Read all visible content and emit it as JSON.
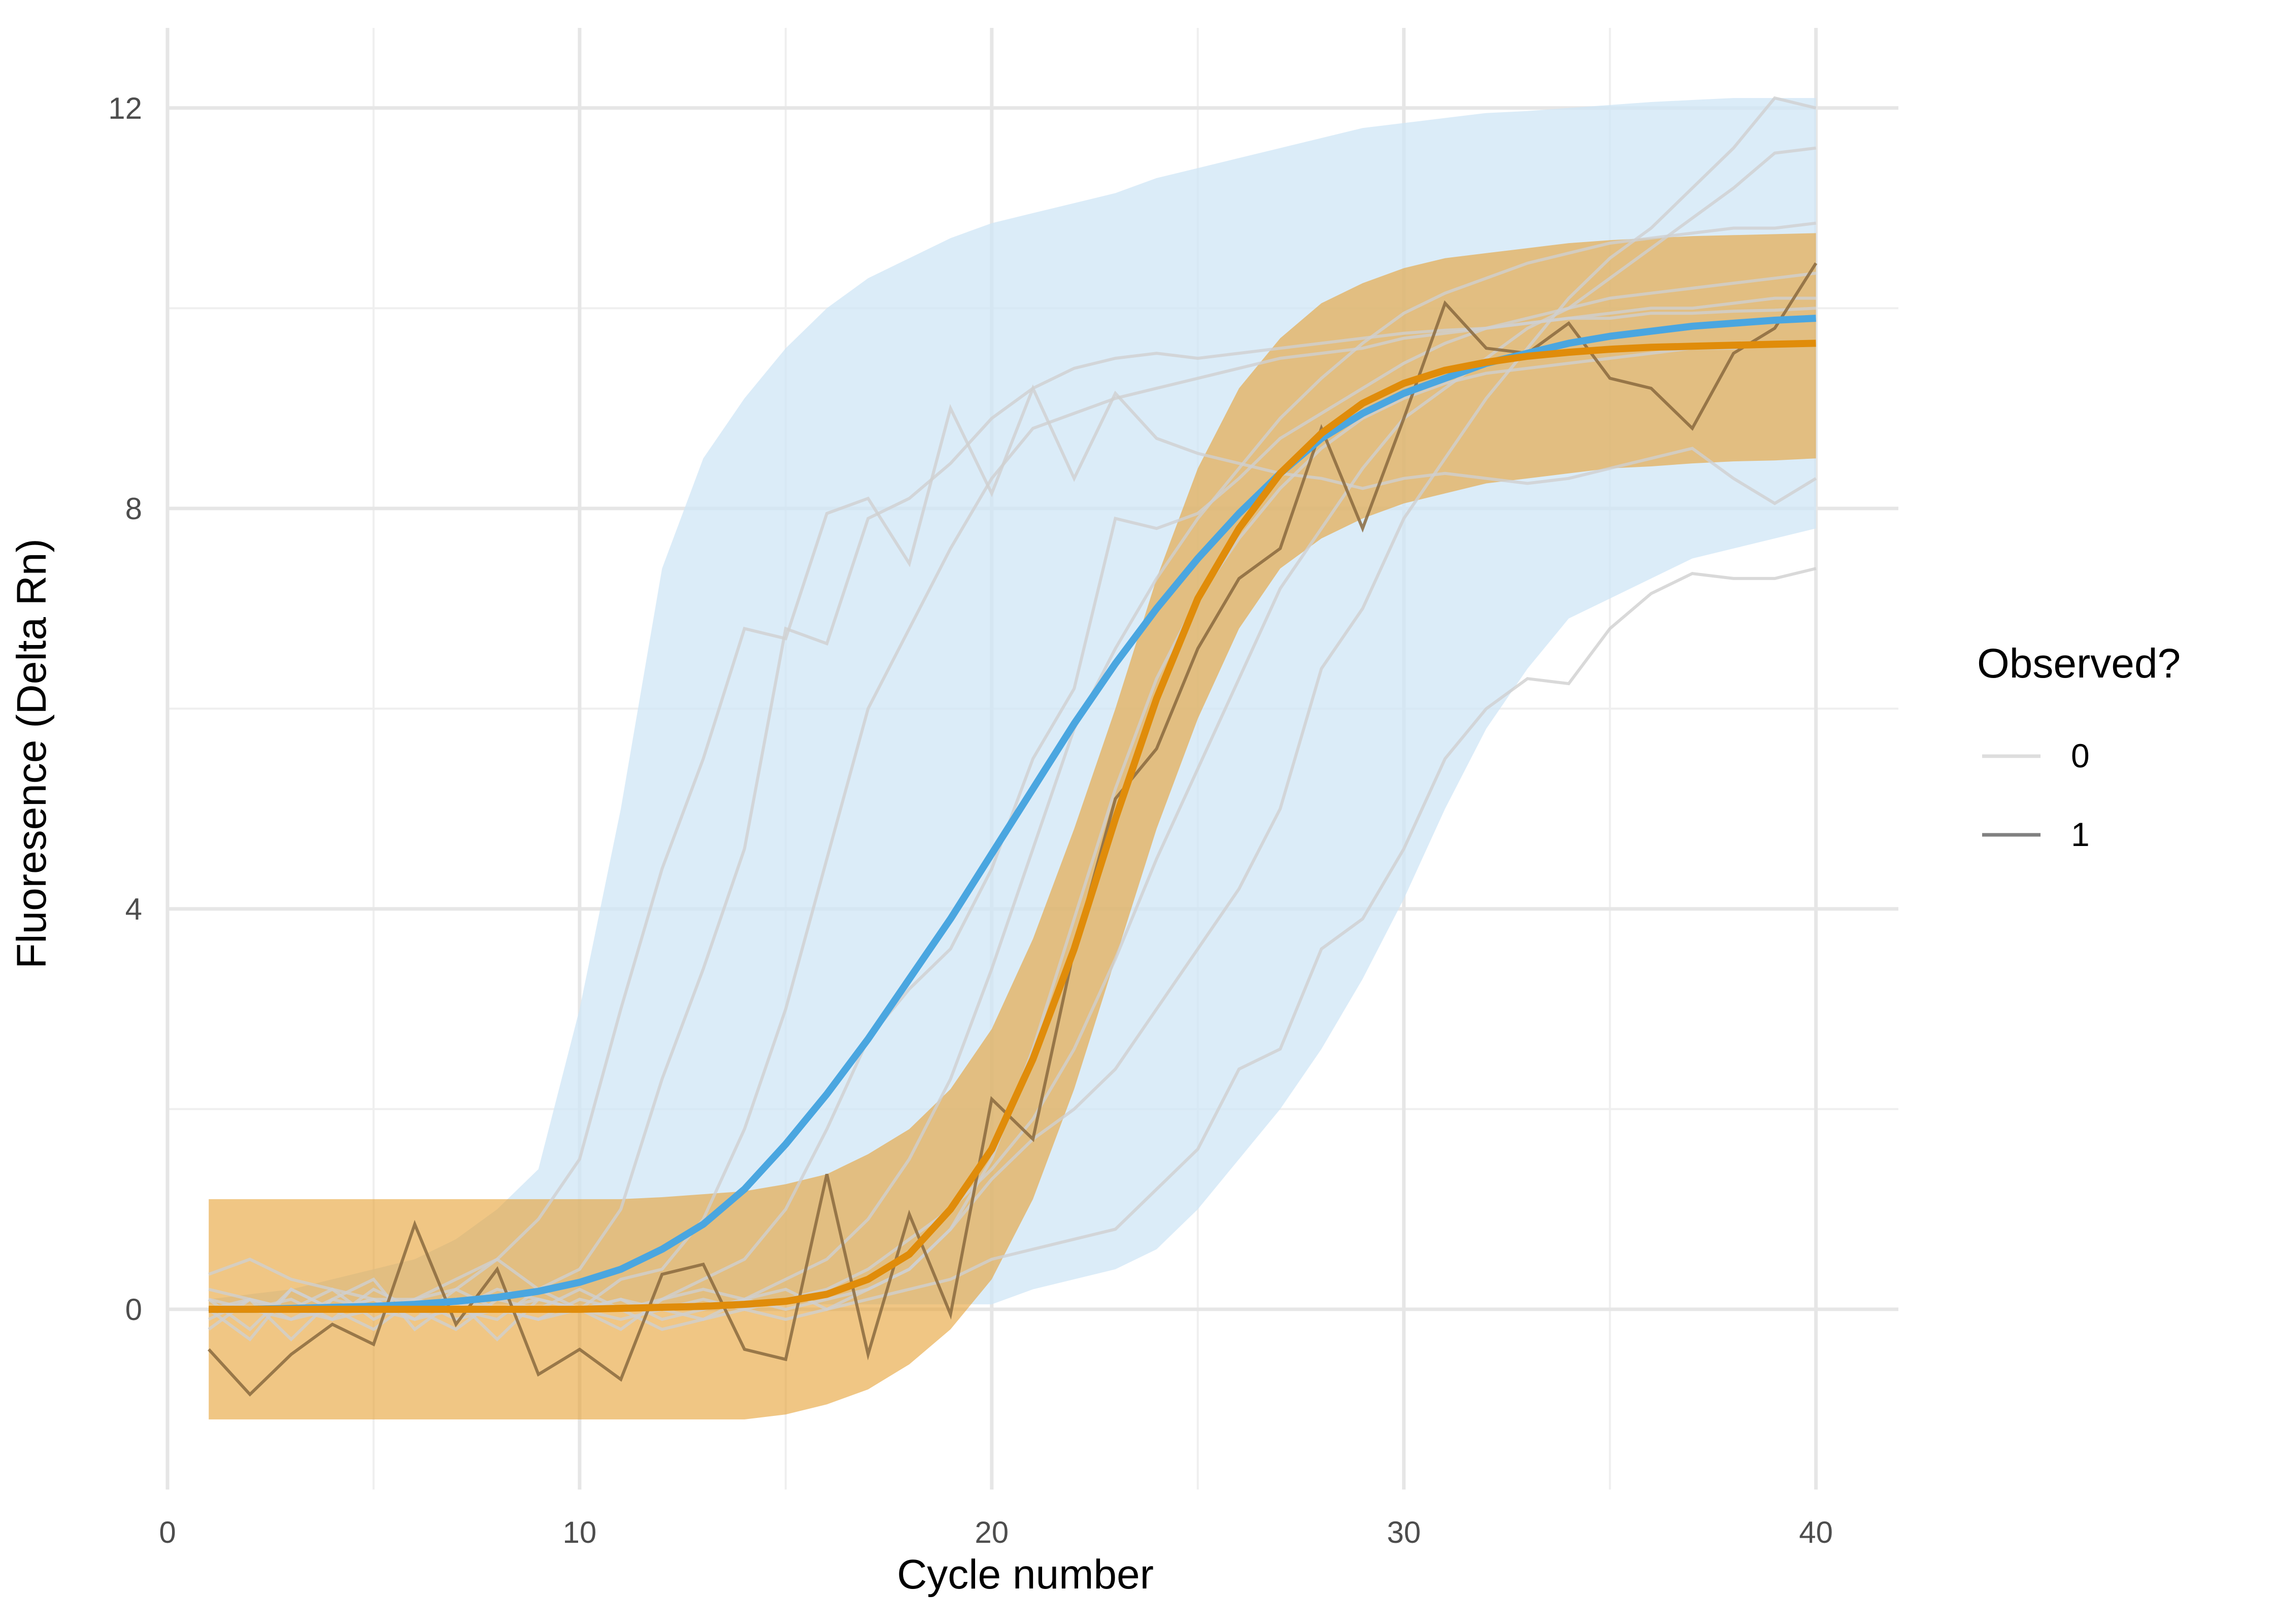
{
  "chart_data": {
    "type": "line",
    "xlabel": "Cycle number",
    "ylabel": "Fluoresence (Delta Rn)",
    "xlim": [
      0,
      42
    ],
    "ylim": [
      -1.8,
      12.8
    ],
    "x_ticks": [
      0,
      10,
      20,
      30,
      40
    ],
    "y_ticks": [
      0,
      4,
      8,
      12
    ],
    "grid": true,
    "legend": {
      "title": "Observed?",
      "placement": "right",
      "entries": [
        {
          "label": "0",
          "color": "#dddddd"
        },
        {
          "label": "1",
          "color": "#808080"
        }
      ]
    },
    "colors": {
      "blue_band": "#cfe5f6",
      "blue_line": "#4aa6e0",
      "orange_band": "#e6a032",
      "orange_line": "#e08c0a",
      "observed_0": "#cfcfcf",
      "observed_1": "#8a6a3e"
    },
    "x": [
      1,
      2,
      3,
      4,
      5,
      6,
      7,
      8,
      9,
      10,
      11,
      12,
      13,
      14,
      15,
      16,
      17,
      18,
      19,
      20,
      21,
      22,
      23,
      24,
      25,
      26,
      27,
      28,
      29,
      30,
      31,
      32,
      33,
      34,
      35,
      36,
      37,
      38,
      39,
      40
    ],
    "series": [
      {
        "role": "band-blue",
        "lower": [
          0.05,
          0.05,
          0.05,
          0.05,
          0.05,
          0.05,
          0.05,
          0.05,
          0.05,
          0.05,
          0.05,
          0.05,
          0.05,
          0.05,
          0.05,
          0.05,
          0.05,
          0.05,
          0.05,
          0.05,
          0.2,
          0.3,
          0.4,
          0.6,
          1.0,
          1.5,
          2.0,
          2.6,
          3.3,
          4.1,
          5.0,
          5.8,
          6.4,
          6.9,
          7.1,
          7.3,
          7.5,
          7.6,
          7.7,
          7.8
        ],
        "upper": [
          0.1,
          0.15,
          0.2,
          0.3,
          0.4,
          0.5,
          0.7,
          1.0,
          1.4,
          3.0,
          5.0,
          7.4,
          8.5,
          9.1,
          9.6,
          10.0,
          10.3,
          10.5,
          10.7,
          10.85,
          10.95,
          11.05,
          11.15,
          11.3,
          11.4,
          11.5,
          11.6,
          11.7,
          11.8,
          11.85,
          11.9,
          11.95,
          11.97,
          12.0,
          12.03,
          12.06,
          12.08,
          12.1,
          12.1,
          12.1
        ]
      },
      {
        "role": "mean-blue",
        "values": [
          0.0,
          0.0,
          0.01,
          0.02,
          0.03,
          0.05,
          0.08,
          0.12,
          0.18,
          0.27,
          0.4,
          0.6,
          0.85,
          1.2,
          1.65,
          2.15,
          2.7,
          3.3,
          3.9,
          4.55,
          5.2,
          5.85,
          6.45,
          7.0,
          7.5,
          7.95,
          8.35,
          8.7,
          8.95,
          9.15,
          9.3,
          9.45,
          9.55,
          9.65,
          9.72,
          9.77,
          9.82,
          9.85,
          9.88,
          9.9
        ]
      },
      {
        "role": "band-orange",
        "lower": [
          -1.1,
          -1.1,
          -1.1,
          -1.1,
          -1.1,
          -1.1,
          -1.1,
          -1.1,
          -1.1,
          -1.1,
          -1.1,
          -1.1,
          -1.1,
          -1.1,
          -1.05,
          -0.95,
          -0.8,
          -0.55,
          -0.2,
          0.3,
          1.1,
          2.2,
          3.5,
          4.8,
          5.9,
          6.8,
          7.4,
          7.7,
          7.9,
          8.05,
          8.15,
          8.25,
          8.3,
          8.35,
          8.4,
          8.42,
          8.45,
          8.47,
          8.48,
          8.5
        ]
      },
      {
        "role": "band-orange-upper",
        "upper": [
          1.1,
          1.1,
          1.1,
          1.1,
          1.1,
          1.1,
          1.1,
          1.1,
          1.1,
          1.1,
          1.1,
          1.12,
          1.15,
          1.18,
          1.25,
          1.35,
          1.55,
          1.8,
          2.2,
          2.8,
          3.7,
          4.8,
          6.0,
          7.3,
          8.4,
          9.2,
          9.7,
          10.05,
          10.25,
          10.4,
          10.5,
          10.55,
          10.6,
          10.65,
          10.68,
          10.7,
          10.72,
          10.73,
          10.74,
          10.75
        ]
      },
      {
        "role": "mean-orange",
        "values": [
          0.0,
          0.0,
          0.0,
          0.0,
          0.0,
          0.0,
          0.0,
          0.0,
          0.0,
          0.0,
          0.01,
          0.02,
          0.03,
          0.05,
          0.08,
          0.15,
          0.3,
          0.55,
          1.0,
          1.6,
          2.5,
          3.6,
          4.9,
          6.1,
          7.1,
          7.8,
          8.35,
          8.75,
          9.05,
          9.25,
          9.38,
          9.46,
          9.52,
          9.56,
          9.59,
          9.61,
          9.62,
          9.63,
          9.64,
          9.65
        ]
      },
      {
        "role": "observed-1",
        "values": [
          -0.4,
          -0.85,
          -0.45,
          -0.15,
          -0.35,
          0.85,
          -0.15,
          0.4,
          -0.65,
          -0.4,
          -0.7,
          0.35,
          0.45,
          -0.4,
          -0.5,
          1.35,
          -0.45,
          0.95,
          -0.05,
          2.1,
          1.7,
          3.6,
          5.1,
          5.6,
          6.6,
          7.3,
          7.6,
          8.8,
          7.8,
          8.9,
          10.05,
          9.6,
          9.55,
          9.85,
          9.3,
          9.2,
          8.8,
          9.55,
          9.8,
          10.45
        ]
      },
      {
        "role": "observed-0",
        "values": [
          0.35,
          0.5,
          0.3,
          0.2,
          0.1,
          0.1,
          0.2,
          0.5,
          0.9,
          1.5,
          3.0,
          4.4,
          5.5,
          6.8,
          6.7,
          7.95,
          8.1,
          7.45,
          9.0,
          8.15,
          9.2,
          8.3,
          9.15,
          8.7,
          8.55,
          8.45,
          8.35,
          8.3,
          8.2,
          8.3,
          8.35,
          8.3,
          8.25,
          8.3,
          8.4,
          8.5,
          8.6,
          8.3,
          8.05,
          8.3
        ]
      },
      {
        "role": "observed-0",
        "values": [
          0.0,
          -0.3,
          0.2,
          0.0,
          -0.2,
          0.1,
          0.3,
          0.5,
          0.2,
          0.4,
          1.0,
          2.3,
          3.4,
          4.6,
          6.8,
          6.65,
          7.9,
          8.1,
          8.45,
          8.9,
          9.2,
          9.4,
          9.5,
          9.55,
          9.5,
          9.55,
          9.6,
          9.65,
          9.7,
          9.75,
          9.78,
          9.8,
          9.85,
          9.9,
          9.9,
          9.95,
          9.95,
          9.97,
          9.98,
          10.0
        ]
      },
      {
        "role": "observed-0",
        "values": [
          0.2,
          0.1,
          -0.3,
          0.1,
          0.3,
          -0.2,
          0.1,
          -0.3,
          0.1,
          0.0,
          0.3,
          0.4,
          0.9,
          1.8,
          3.0,
          4.5,
          6.0,
          6.8,
          7.6,
          8.3,
          8.8,
          8.95,
          9.1,
          9.2,
          9.3,
          9.4,
          9.5,
          9.55,
          9.6,
          9.7,
          9.75,
          9.8,
          9.85,
          9.9,
          9.95,
          10.0,
          10.0,
          10.05,
          10.1,
          10.1
        ]
      },
      {
        "role": "observed-0",
        "values": [
          -0.2,
          0.1,
          0.0,
          -0.1,
          0.2,
          0.0,
          -0.2,
          0.1,
          0.0,
          0.2,
          0.0,
          0.1,
          0.3,
          0.5,
          1.0,
          1.8,
          2.7,
          3.2,
          3.6,
          4.4,
          5.5,
          6.2,
          7.9,
          7.8,
          7.95,
          8.3,
          8.7,
          8.95,
          9.2,
          9.45,
          9.65,
          9.8,
          9.9,
          10.0,
          10.1,
          10.15,
          10.2,
          10.25,
          10.3,
          10.35
        ]
      },
      {
        "role": "observed-0",
        "values": [
          0.1,
          -0.2,
          0.2,
          0.0,
          0.1,
          -0.1,
          0.0,
          0.2,
          0.1,
          0.0,
          -0.2,
          0.1,
          0.2,
          0.1,
          0.3,
          0.5,
          0.9,
          1.5,
          2.3,
          3.4,
          4.6,
          5.8,
          6.6,
          7.3,
          7.9,
          8.4,
          8.9,
          9.3,
          9.65,
          9.95,
          10.15,
          10.3,
          10.45,
          10.55,
          10.65,
          10.7,
          10.75,
          10.8,
          10.8,
          10.85
        ]
      },
      {
        "role": "observed-0",
        "values": [
          0.0,
          0.1,
          -0.1,
          0.0,
          0.1,
          -0.1,
          0.2,
          0.0,
          -0.1,
          0.1,
          0.0,
          -0.2,
          -0.1,
          0.0,
          0.1,
          0.2,
          0.4,
          0.7,
          1.0,
          1.4,
          1.9,
          2.6,
          3.5,
          4.5,
          5.4,
          6.3,
          7.2,
          7.8,
          8.4,
          8.9,
          9.2,
          9.5,
          9.8,
          10.0,
          10.3,
          10.6,
          10.9,
          11.2,
          11.55,
          11.6
        ]
      },
      {
        "role": "observed-0",
        "values": [
          0.0,
          0.0,
          0.1,
          -0.1,
          0.0,
          0.1,
          -0.1,
          0.0,
          0.1,
          0.0,
          -0.1,
          0.0,
          0.1,
          0.0,
          -0.1,
          0.0,
          0.1,
          0.2,
          0.3,
          0.5,
          0.6,
          0.7,
          0.8,
          1.2,
          1.6,
          2.4,
          2.6,
          3.6,
          3.9,
          4.6,
          5.5,
          6.0,
          6.3,
          6.25,
          6.8,
          7.15,
          7.35,
          7.3,
          7.3,
          7.4
        ]
      },
      {
        "role": "observed-0",
        "values": [
          0.1,
          0.0,
          -0.1,
          0.1,
          0.0,
          -0.1,
          0.1,
          0.0,
          -0.1,
          0.0,
          0.1,
          0.0,
          -0.1,
          0.1,
          0.0,
          0.1,
          0.2,
          0.4,
          0.8,
          1.3,
          1.7,
          2.0,
          2.4,
          3.0,
          3.6,
          4.2,
          5.0,
          6.4,
          7.0,
          7.9,
          8.5,
          9.1,
          9.6,
          10.1,
          10.5,
          10.8,
          11.2,
          11.6,
          12.1,
          12.0
        ]
      },
      {
        "role": "observed-0",
        "values": [
          -0.1,
          0.1,
          0.0,
          0.2,
          -0.1,
          0.1,
          0.0,
          -0.1,
          0.2,
          0.0,
          0.1,
          -0.1,
          0.0,
          0.1,
          0.2,
          0.0,
          0.2,
          0.4,
          0.8,
          1.5,
          2.6,
          3.9,
          5.2,
          6.3,
          7.1,
          7.7,
          8.2,
          8.6,
          8.9,
          9.1,
          9.25,
          9.35,
          9.4,
          9.45,
          9.5,
          9.55,
          9.6,
          9.6,
          9.65,
          9.65
        ]
      }
    ]
  }
}
